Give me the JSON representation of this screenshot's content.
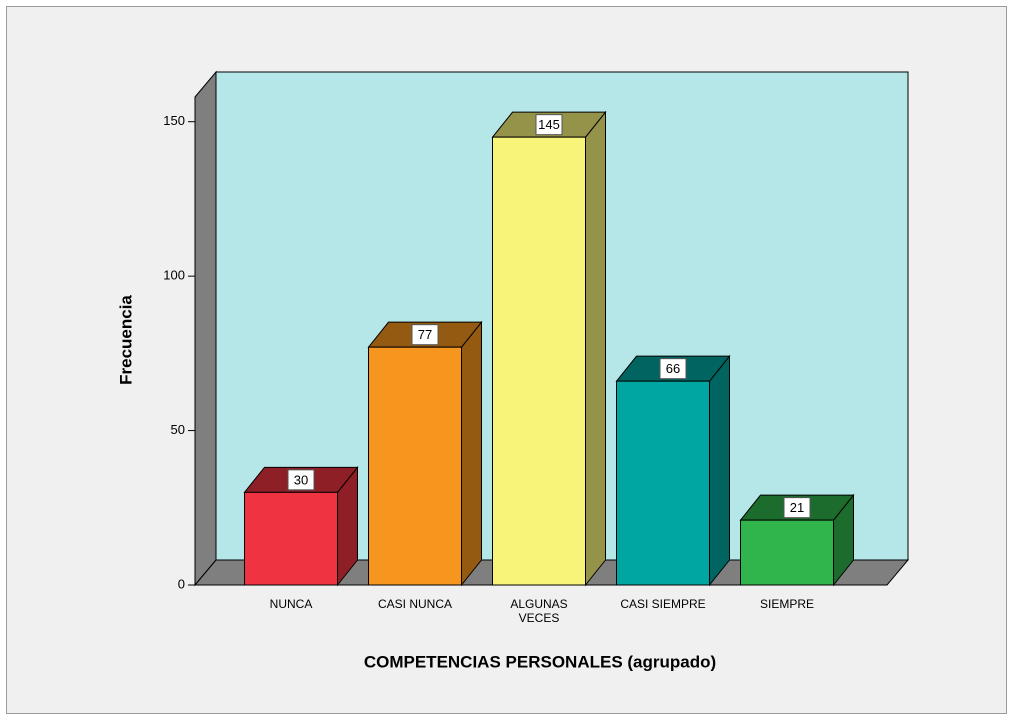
{
  "chart_data": {
    "type": "bar3d",
    "x_label": "COMPETENCIAS PERSONALES (agrupado)",
    "y_label": "Frecuencia",
    "categories": [
      "NUNCA",
      "CASI NUNCA",
      "ALGUNAS VECES",
      "CASI SIEMPRE",
      "SIEMPRE"
    ],
    "values": [
      30,
      77,
      145,
      66,
      21
    ],
    "colors": [
      "#ef3340",
      "#f7961e",
      "#f8f47a",
      "#00a7a2",
      "#2fb54b"
    ],
    "ylim": [
      0,
      158
    ],
    "yticks": [
      0,
      50,
      100,
      150
    ],
    "grid": false
  }
}
